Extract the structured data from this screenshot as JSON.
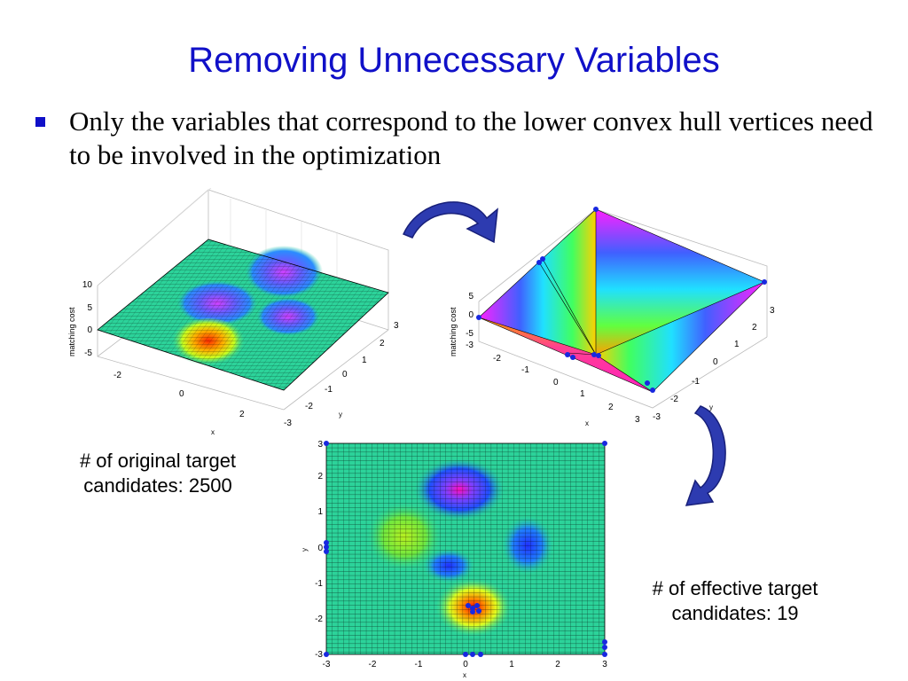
{
  "slide": {
    "title": "Removing Unnecessary Variables",
    "bullet": "Only the variables that correspond to the lower convex hull vertices need to be involved in the optimization",
    "caption_original": "# of original target candidates: 2500",
    "caption_effective": "# of effective target candidates: 19",
    "colors": {
      "title": "#1010c8",
      "arrow": "#2d3bb0"
    }
  },
  "surface_plot": {
    "zlabel": "matching cost",
    "xlabel": "x",
    "ylabel": "y",
    "z_ticks": [
      "10",
      "5",
      "0",
      "-5"
    ],
    "x_ticks": [
      "-2",
      "0",
      "2"
    ],
    "y_ticks": [
      "3",
      "2",
      "1",
      "0",
      "-1",
      "-2",
      "-3"
    ]
  },
  "hull_plot": {
    "zlabel": "matching cost",
    "xlabel": "x",
    "ylabel": "y",
    "z_ticks": [
      "5",
      "0",
      "-5"
    ],
    "x_ticks": [
      "-3",
      "-2",
      "-1",
      "0",
      "1",
      "2",
      "3"
    ],
    "y_ticks": [
      "3",
      "2",
      "1",
      "0",
      "-1",
      "-2"
    ],
    "corner_label": "-3"
  },
  "grid_plot": {
    "xlabel": "x",
    "ylabel": "y",
    "x_ticks": [
      "-3",
      "-2",
      "-1",
      "0",
      "1",
      "2",
      "3"
    ],
    "y_ticks": [
      "3",
      "2",
      "1",
      "0",
      "-1",
      "-2",
      "-3"
    ]
  }
}
